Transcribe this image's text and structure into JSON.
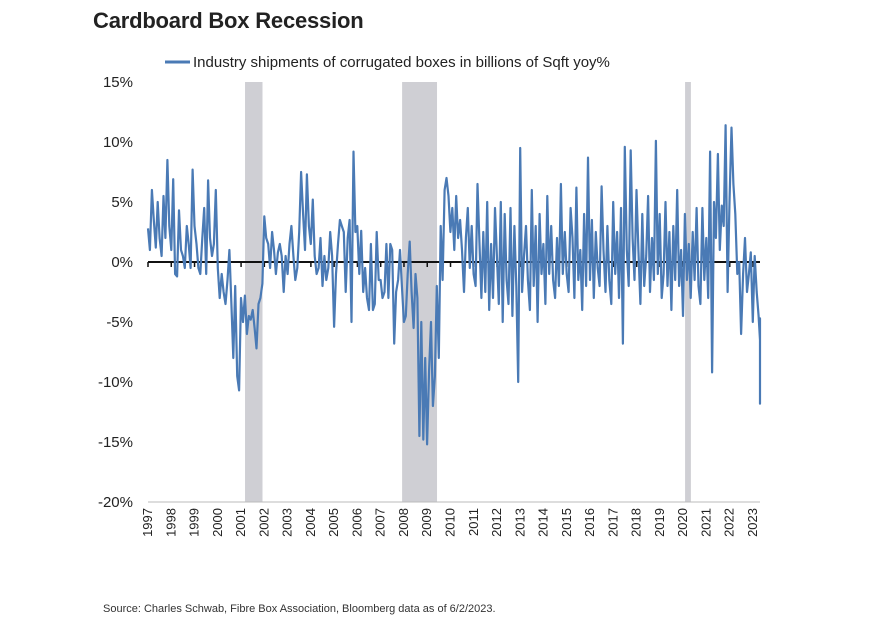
{
  "title": "Cardboard Box Recession",
  "source": "Source: Charles Schwab, Fibre Box Association, Bloomberg data as of 6/2/2023.",
  "colors": {
    "series": "#4a7ab5",
    "recession": "#cfcfd4",
    "zero_line": "#111111"
  },
  "chart_data": {
    "type": "line",
    "title": "Cardboard Box Recession",
    "xlabel": "",
    "ylabel": "",
    "ylim": [
      -20,
      15
    ],
    "xlim": [
      1997,
      2023.3
    ],
    "grid": false,
    "legend_position": "top",
    "y_ticks": [
      15,
      10,
      5,
      0,
      -5,
      -10,
      -15,
      -20
    ],
    "y_tick_labels": [
      "15%",
      "10%",
      "5%",
      "0%",
      "-5%",
      "-10%",
      "-15%",
      "-20%"
    ],
    "x_ticks": [
      1997,
      1998,
      1999,
      2000,
      2001,
      2002,
      2003,
      2004,
      2005,
      2006,
      2007,
      2008,
      2009,
      2010,
      2011,
      2012,
      2013,
      2014,
      2015,
      2016,
      2017,
      2018,
      2019,
      2020,
      2021,
      2022,
      2023
    ],
    "x_tick_labels": [
      "1997",
      "1998",
      "1999",
      "2000",
      "2001",
      "2002",
      "2003",
      "2004",
      "2005",
      "2006",
      "2007",
      "2008",
      "2009",
      "2010",
      "2011",
      "2012",
      "2013",
      "2014",
      "2015",
      "2016",
      "2017",
      "2018",
      "2019",
      "2020",
      "2021",
      "2022",
      "2023"
    ],
    "recessions": [
      [
        2001.17,
        2001.92
      ],
      [
        2007.92,
        2009.42
      ],
      [
        2020.08,
        2020.33
      ]
    ],
    "series": [
      {
        "name": "Industry shipments of corrugated boxes in billions of Sqft yoy%",
        "x_start": 1997.0,
        "x_step": 0.0833,
        "values": [
          2.8,
          1.0,
          6.0,
          3.5,
          1.2,
          5.0,
          2.0,
          0.5,
          5.5,
          2.0,
          8.5,
          3.0,
          1.0,
          6.9,
          -1.0,
          -1.2,
          4.3,
          1.0,
          0.5,
          -0.5,
          3.0,
          1.5,
          -0.5,
          7.7,
          3.0,
          1.5,
          -0.5,
          -1.0,
          2.0,
          4.5,
          -1.0,
          6.8,
          2.0,
          0.5,
          1.5,
          6.0,
          -0.5,
          -3.0,
          -1.0,
          -2.5,
          -3.5,
          -1.5,
          1.0,
          -3.5,
          -8.0,
          -2.0,
          -9.5,
          -10.7,
          -3.0,
          -5.0,
          -2.8,
          -6.0,
          -4.5,
          -4.8,
          -4.0,
          -5.5,
          -7.2,
          -3.5,
          -3.0,
          -1.8,
          3.8,
          2.0,
          1.5,
          -0.5,
          2.5,
          1.0,
          -1.0,
          0.8,
          1.5,
          0.5,
          -2.5,
          0.5,
          -1.0,
          1.5,
          3.0,
          0.5,
          -1.5,
          -0.5,
          2.5,
          7.5,
          4.0,
          1.0,
          7.3,
          3.0,
          1.5,
          5.2,
          0.5,
          -1.0,
          -0.5,
          2.0,
          -2.0,
          0.5,
          -1.5,
          -0.5,
          2.5,
          0.5,
          -5.4,
          -1.0,
          1.5,
          3.5,
          3.0,
          2.5,
          -2.5,
          2.0,
          3.5,
          -5.0,
          9.2,
          2.5,
          3.0,
          -1.0,
          2.6,
          -2.5,
          -0.5,
          -3.0,
          -4.0,
          1.5,
          -4.0,
          -3.5,
          2.5,
          -1.5,
          -1.5,
          -3.0,
          -2.5,
          1.5,
          -3.0,
          1.5,
          1.0,
          -6.8,
          -2.5,
          -1.5,
          1.0,
          -2.0,
          -5.0,
          -4.5,
          -1.0,
          1.7,
          -2.5,
          -5.5,
          -1.0,
          -3.0,
          -14.5,
          -5.0,
          -14.8,
          -8.0,
          -15.2,
          -9.0,
          -5.0,
          -12.0,
          -9.5,
          -2.0,
          -8.0,
          3.0,
          -1.5,
          6.0,
          7.0,
          5.5,
          2.5,
          4.5,
          1.0,
          5.5,
          2.0,
          3.5,
          1.0,
          -2.5,
          2.0,
          4.5,
          -0.5,
          3.0,
          -1.0,
          -2.0,
          6.5,
          1.5,
          -3.0,
          2.5,
          -2.5,
          5.0,
          -4.0,
          1.5,
          -3.0,
          4.5,
          0.5,
          -3.5,
          5.0,
          -5.0,
          4.0,
          -1.5,
          -3.5,
          4.5,
          -4.5,
          3.0,
          -2.0,
          -10.0,
          9.5,
          -2.5,
          0.5,
          3.0,
          -1.5,
          -4.0,
          6.0,
          -2.0,
          3.0,
          -5.0,
          4.0,
          -1.0,
          1.5,
          -3.5,
          5.5,
          -1.0,
          3.0,
          -1.5,
          -3.0,
          2.0,
          -2.0,
          6.5,
          -1.0,
          2.5,
          -1.0,
          -2.5,
          4.5,
          2.0,
          -3.0,
          6.2,
          -1.5,
          1.0,
          -4.0,
          4.0,
          -2.0,
          8.7,
          -1.5,
          3.5,
          -3.0,
          2.5,
          -0.5,
          -2.0,
          6.3,
          1.0,
          -2.5,
          3.0,
          -1.5,
          -3.5,
          5.0,
          -1.0,
          2.5,
          -3.0,
          4.5,
          -6.8,
          9.6,
          1.0,
          -2.0,
          9.3,
          2.0,
          -1.5,
          6.0,
          1.0,
          -3.5,
          4.0,
          -2.0,
          0.5,
          5.5,
          -2.5,
          2.0,
          -1.5,
          10.1,
          -1.0,
          4.0,
          -3.0,
          -1.0,
          5.0,
          -2.0,
          2.5,
          -4.0,
          3.0,
          -1.5,
          6.0,
          -2.0,
          1.0,
          -4.5,
          4.0,
          -1.5,
          1.5,
          -3.0,
          2.5,
          -1.5,
          4.5,
          -2.0,
          -3.5,
          4.5,
          -1.5,
          2.0,
          -3.0,
          9.2,
          -9.2,
          5.0,
          2.0,
          9.0,
          1.0,
          4.7,
          3.0,
          11.4,
          -2.5,
          5.0,
          11.2,
          6.5,
          4.0,
          -1.0,
          0.0,
          -6.0,
          -1.0,
          2.0,
          -2.5,
          -1.0,
          0.8,
          -5.0,
          0.5,
          -2.5,
          -4.5,
          -6.5,
          -8.0,
          -7.0,
          -11.8,
          -9.0,
          -4.7,
          -11.0
        ]
      }
    ]
  }
}
